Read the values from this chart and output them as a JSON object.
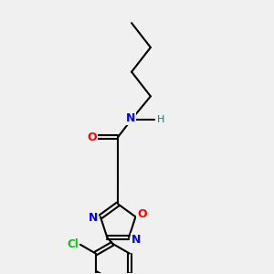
{
  "bg_color": "#f0f0f0",
  "bond_color": "#000000",
  "bond_width": 1.5,
  "atoms": {
    "N_label": "N",
    "N_color": "#0000ff",
    "H_label": "H",
    "H_color": "#008080",
    "O_amide_label": "O",
    "O_amide_color": "#ff0000",
    "O_ring_label": "O",
    "O_ring_color": "#ff0000",
    "N1_ring_label": "N",
    "N1_ring_color": "#0000ff",
    "N2_ring_label": "N",
    "N2_ring_color": "#0000ff",
    "Cl_label": "Cl",
    "Cl_color": "#00cc00"
  },
  "figsize": [
    3.0,
    3.0
  ],
  "dpi": 100
}
